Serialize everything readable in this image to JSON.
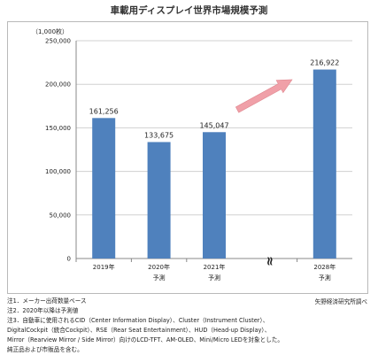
{
  "title": "車載用ディスプレイ世界市場規模予測",
  "chart_data": {
    "type": "bar",
    "unit_label": "（1,000枚）",
    "categories": [
      "2019年",
      "2020年",
      "2021年",
      "2028年"
    ],
    "category_sublabels": [
      "",
      "予測",
      "予測",
      "予測"
    ],
    "values": [
      161256,
      133675,
      145047,
      216922
    ],
    "data_labels": [
      "161,256",
      "133,675",
      "145,047",
      "216,922"
    ],
    "ylim": [
      0,
      250000
    ],
    "yticks": [
      0,
      50000,
      100000,
      150000,
      200000,
      250000
    ],
    "ytick_labels": [
      "0",
      "50,000",
      "100,000",
      "150,000",
      "200,000",
      "250,000"
    ],
    "grid": true,
    "bar_color": "#4f81bd",
    "arrow_color": "#f0a0a8",
    "axis_break_symbol": "≈"
  },
  "notes": [
    "注1．メーカー出荷数量ベース",
    "注2．2020年以降は予測値",
    "注3．自動車に使用されるCID（Center Information Display）、Cluster（Instrument Cluster）、",
    "DigitalCockpit（統合Cockpit）、RSE（Rear Seat Entertainment）、HUD（Head-up Display）、",
    "Mirror（Rearview Mirror / Side Mirror）向けのLCD-TFT、AM-OLED、Mini/Micro LEDを対象とした。",
    "純正品および市販品を含む。"
  ],
  "source": "矢野経済研究所調べ"
}
